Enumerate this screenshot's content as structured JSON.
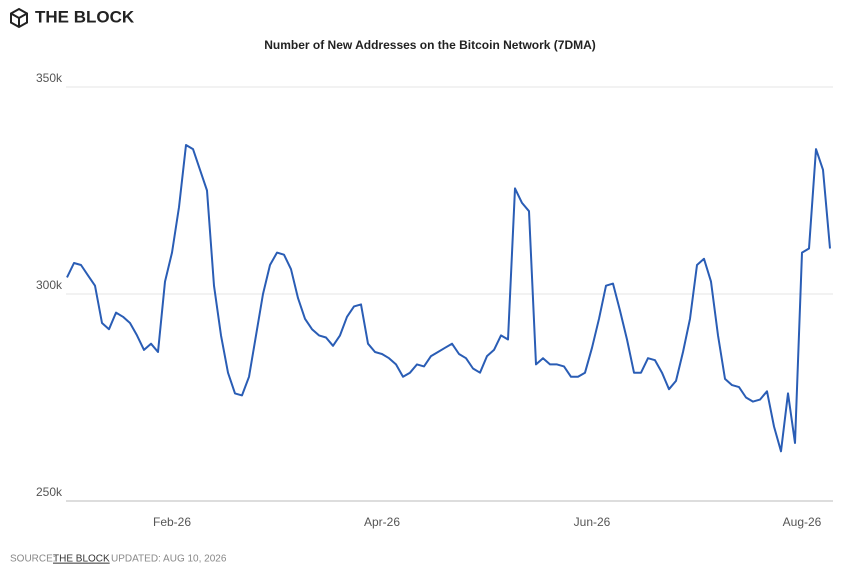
{
  "brand": "THE BLOCK",
  "footer": {
    "source_label": "SOURCE:",
    "source": "THE BLOCK",
    "updated": "UPDATED: AUG 10, 2026"
  },
  "chart_data": {
    "type": "line",
    "title": "Number of New Addresses on the Bitcoin Network (7DMA)",
    "categories": [
      null,
      null,
      null,
      null,
      null,
      null,
      null,
      null,
      null,
      null,
      null,
      null,
      null,
      null,
      null,
      "Feb-26",
      null,
      null,
      null,
      null,
      null,
      null,
      null,
      null,
      null,
      null,
      null,
      null,
      null,
      null,
      null,
      null,
      null,
      null,
      null,
      null,
      null,
      null,
      null,
      null,
      null,
      null,
      null,
      null,
      null,
      "Apr-26",
      null,
      null,
      null,
      null,
      null,
      null,
      null,
      null,
      null,
      null,
      null,
      null,
      null,
      null,
      null,
      null,
      null,
      null,
      null,
      null,
      null,
      null,
      null,
      null,
      null,
      null,
      null,
      null,
      null,
      "Jun-26",
      null,
      null,
      null,
      null,
      null,
      null,
      null,
      null,
      null,
      null,
      null,
      null,
      null,
      null,
      null,
      null,
      null,
      null,
      null,
      null,
      null,
      null,
      null,
      null,
      null,
      null,
      null,
      null,
      null,
      "Aug-26",
      null,
      null,
      null,
      null
    ],
    "series": [
      {
        "name": "New Addresses",
        "color": "#2a5db5",
        "values": [
          304,
          307.5,
          307,
          304.5,
          302,
          293,
          291.5,
          295.5,
          294.5,
          293,
          290,
          286.5,
          288,
          286,
          303,
          310,
          321,
          336,
          335,
          330,
          325,
          302,
          290,
          281,
          276,
          275.5,
          280,
          290,
          300,
          307,
          310,
          309.5,
          306,
          299,
          294,
          291.5,
          290,
          289.5,
          287.5,
          290,
          294.5,
          297,
          297.5,
          288,
          286,
          285.5,
          284.5,
          283,
          280,
          281,
          283,
          282.5,
          285,
          286,
          287,
          288,
          285.5,
          284.5,
          282,
          281,
          285,
          286.5,
          290,
          289,
          325.5,
          322,
          320,
          283,
          284.5,
          283,
          283,
          282.5,
          280,
          280,
          281,
          287,
          294,
          302,
          302.5,
          296,
          289,
          281,
          281,
          284.5,
          284,
          281,
          277,
          279,
          286,
          294,
          307,
          308.5,
          303,
          290,
          279.5,
          278,
          277.5,
          275,
          274,
          274.5,
          276.5,
          268,
          262,
          276,
          264,
          310,
          311,
          335,
          330,
          311
        ]
      }
    ],
    "ylim": [
      250,
      350
    ],
    "yticks": [
      {
        "value": 250,
        "label": "250k"
      },
      {
        "value": 300,
        "label": "300k"
      },
      {
        "value": 350,
        "label": "350k"
      }
    ],
    "grid": true
  }
}
